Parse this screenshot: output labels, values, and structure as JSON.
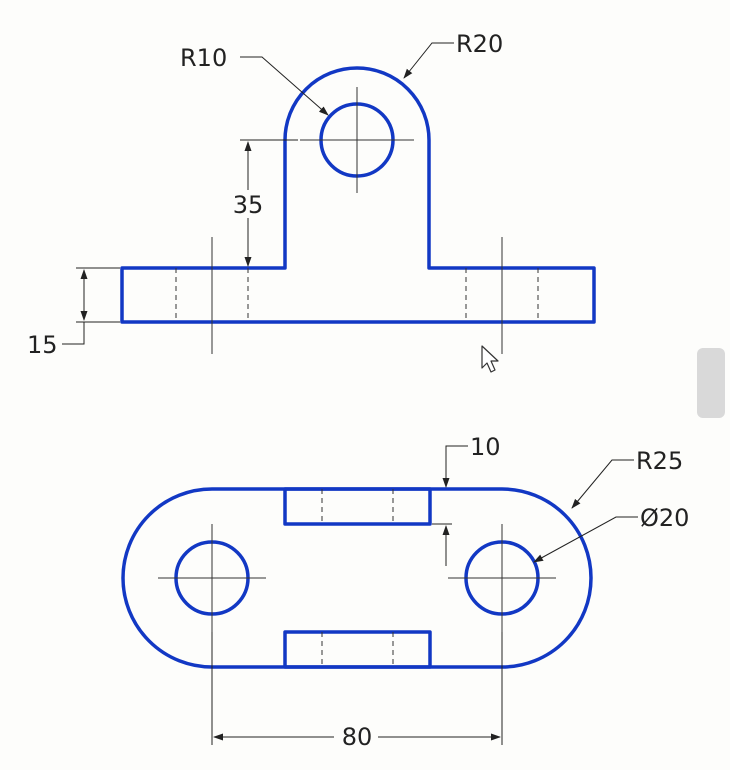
{
  "front_view": {
    "radius_hole_label": "R10",
    "radius_arc_label": "R20",
    "height_label": "35",
    "base_thickness_label": "15"
  },
  "top_view": {
    "slot_depth_label": "10",
    "end_radius_label": "R25",
    "hole_diameter_label": "Ø20",
    "center_distance_label": "80"
  },
  "colors": {
    "outline": "#1238c4",
    "background": "#fdfdfb",
    "dimension": "#222222"
  },
  "icons": {
    "cursor": "mouse-pointer-icon"
  }
}
